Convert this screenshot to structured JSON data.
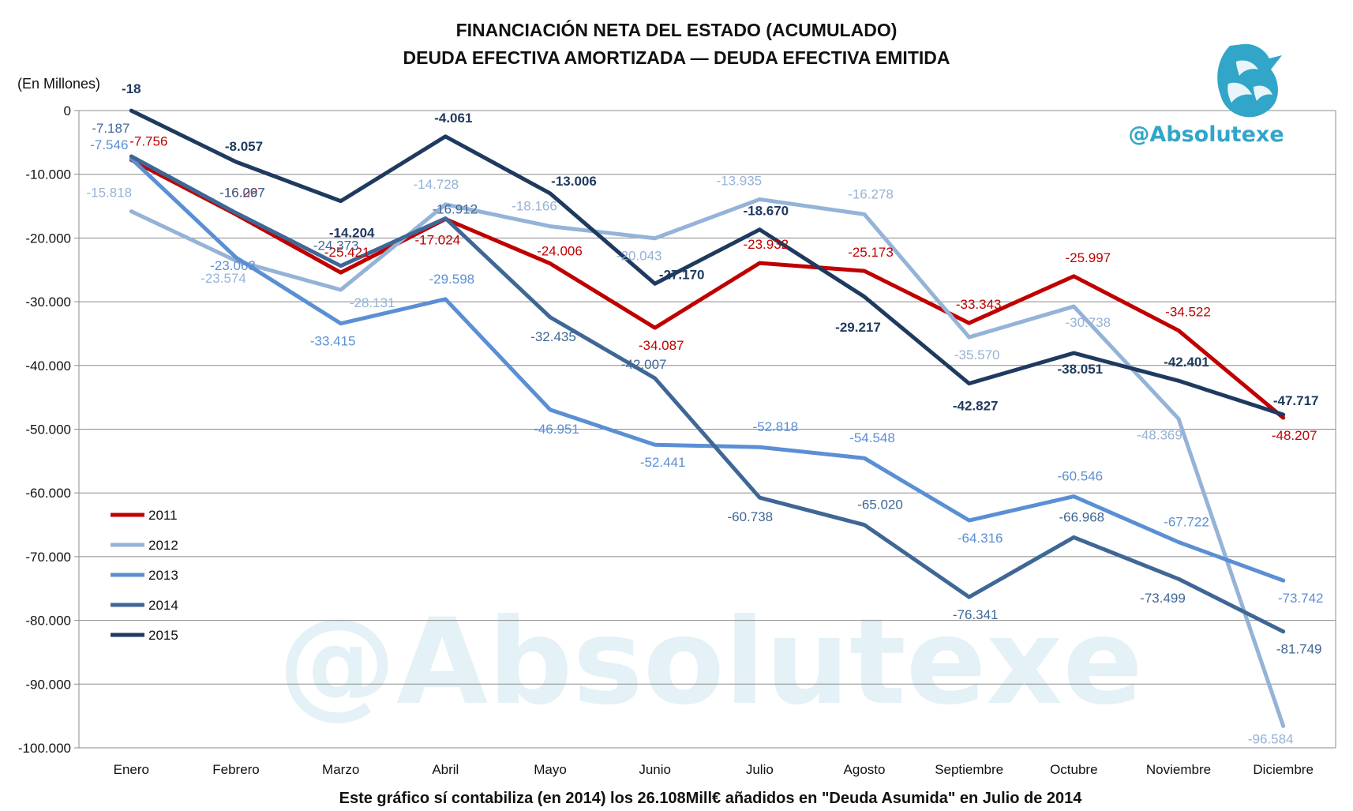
{
  "chart_data": {
    "type": "line",
    "title": "FINANCIACIÓN NETA DEL ESTADO (ACUMULADO)",
    "subtitle": "DEUDA EFECTIVA AMORTIZADA — DEUDA EFECTIVA EMITIDA",
    "unit_label": "(En Millones)",
    "footnote": "Este gráfico sí contabiliza (en 2014) los 26.108Mill€ añadidos en \"Deuda Asumida\" en Julio de 2014",
    "categories": [
      "Enero",
      "Febrero",
      "Marzo",
      "Abril",
      "Mayo",
      "Junio",
      "Julio",
      "Agosto",
      "Septiembre",
      "Octubre",
      "Noviembre",
      "Diciembre"
    ],
    "ylim": [
      -100000,
      0
    ],
    "yticks": [
      0,
      -10000,
      -20000,
      -30000,
      -40000,
      -50000,
      -60000,
      -70000,
      -80000,
      -90000,
      -100000
    ],
    "ytick_labels": [
      "0",
      "-10.000",
      "-20.000",
      "-30.000",
      "-40.000",
      "-50.000",
      "-60.000",
      "-70.000",
      "-80.000",
      "-90.000",
      "-100.000"
    ],
    "grid": true,
    "legend_position": "lower-left",
    "series": [
      {
        "name": "2011",
        "color": "#c00000",
        "bold": false,
        "values": [
          -7756,
          -16297,
          -25421,
          -17024,
          -24006,
          -34087,
          -23932,
          -25173,
          -33343,
          -25997,
          -34522,
          -48207
        ],
        "labels": [
          "-7.756",
          "-16.297",
          "-25.421",
          "-17.024",
          "-24.006",
          "-34.087",
          "-23.932",
          "-25.173",
          "-33.343",
          "-25.997",
          "-34.522",
          "-48.207"
        ]
      },
      {
        "name": "2012",
        "color": "#95b3d7",
        "bold": false,
        "values": [
          -15818,
          -23574,
          -28131,
          -14728,
          -18166,
          -20043,
          -13935,
          -16278,
          -35570,
          -30738,
          -48369,
          -96584
        ],
        "labels": [
          "-15.818",
          "-23.574",
          "-28.131",
          "-14.728",
          "-18.166",
          "-20.043",
          "-13.935",
          "-16.278",
          "-35.570",
          "-30.738",
          "-48.369",
          "-96.584"
        ]
      },
      {
        "name": "2013",
        "color": "#5b8fd4",
        "bold": false,
        "values": [
          -7546,
          -23063,
          -33415,
          -29598,
          -46951,
          -52441,
          -52818,
          -54548,
          -64316,
          -60546,
          -67722,
          -73742
        ],
        "labels": [
          "-7.546",
          "-23.063",
          "-33.415",
          "-29.598",
          "-46.951",
          "-52.441",
          "-52.818",
          "-54.548",
          "-64.316",
          "-60.546",
          "-67.722",
          "-73.742"
        ]
      },
      {
        "name": "2014",
        "color": "#3f6796",
        "bold": false,
        "values": [
          -7187,
          -16067,
          -24373,
          -16912,
          -32435,
          -42007,
          -60738,
          -65020,
          -76341,
          -66968,
          -73499,
          -81749
        ],
        "labels": [
          "-7.187",
          "-16.067",
          "-24.373",
          "-16.912",
          "-32.435",
          "-42.007",
          "-60.738",
          "-65.020",
          "-76.341",
          "-66.968",
          "-73.499",
          "-81.749"
        ]
      },
      {
        "name": "2015",
        "color": "#1f3a5f",
        "bold": true,
        "values": [
          -18,
          -8057,
          -14204,
          -4061,
          -13006,
          -27170,
          -18670,
          -29217,
          -42827,
          -38051,
          -42401,
          -47717
        ],
        "labels": [
          "-18",
          "-8.057",
          "-14.204",
          "-4.061",
          "-13.006",
          "-27.170",
          "-18.670",
          "-29.217",
          "-42.827",
          "-38.051",
          "-42.401",
          "-47.717"
        ]
      }
    ]
  },
  "brand": {
    "handle": "@Absolutexe",
    "color": "#31a6c8",
    "watermark": "@Absolutexe",
    "logo_icon": "griffin-logo-icon"
  }
}
